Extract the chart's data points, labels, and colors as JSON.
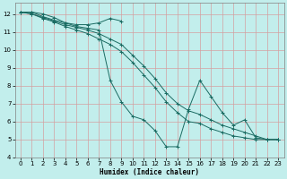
{
  "xlabel": "Humidex (Indice chaleur)",
  "bg_color": "#c2eeec",
  "grid_color": "#d4a0a0",
  "line_color": "#1a6b62",
  "xlim": [
    -0.5,
    23.5
  ],
  "ylim": [
    4,
    12.6
  ],
  "xticks": [
    0,
    1,
    2,
    3,
    4,
    5,
    6,
    7,
    8,
    9,
    10,
    11,
    12,
    13,
    14,
    15,
    16,
    17,
    18,
    19,
    20,
    21,
    22,
    23
  ],
  "yticks": [
    4,
    5,
    6,
    7,
    8,
    9,
    10,
    11,
    12
  ],
  "lines": [
    {
      "x": [
        0,
        1,
        2,
        3,
        4,
        5,
        6,
        7,
        8,
        9
      ],
      "y": [
        12.1,
        12.1,
        11.85,
        11.65,
        11.5,
        11.4,
        11.4,
        11.5,
        11.75,
        11.6
      ]
    },
    {
      "x": [
        0,
        1,
        2,
        3,
        4,
        5,
        6,
        7,
        8,
        9,
        10,
        11,
        12,
        13,
        14,
        15,
        16,
        17,
        18,
        19,
        20,
        21,
        22,
        23
      ],
      "y": [
        12.1,
        12.1,
        12.0,
        11.8,
        11.5,
        11.3,
        11.2,
        11.1,
        8.3,
        7.1,
        6.3,
        6.1,
        5.5,
        4.6,
        4.6,
        6.7,
        8.3,
        7.4,
        6.5,
        5.8,
        6.1,
        5.1,
        5.0,
        5.0
      ]
    },
    {
      "x": [
        0,
        1,
        2,
        3,
        4,
        5,
        6,
        7,
        8,
        9,
        10,
        11,
        12,
        13,
        14,
        15,
        16,
        17,
        18,
        19,
        20,
        21,
        22,
        23
      ],
      "y": [
        12.1,
        12.0,
        11.8,
        11.6,
        11.4,
        11.25,
        11.1,
        10.9,
        10.6,
        10.3,
        9.7,
        9.1,
        8.4,
        7.6,
        7.0,
        6.6,
        6.4,
        6.1,
        5.8,
        5.6,
        5.4,
        5.2,
        5.0,
        5.0
      ]
    },
    {
      "x": [
        0,
        1,
        2,
        3,
        4,
        5,
        6,
        7,
        8,
        9,
        10,
        11,
        12,
        13,
        14,
        15,
        16,
        17,
        18,
        19,
        20,
        21,
        22,
        23
      ],
      "y": [
        12.1,
        12.0,
        11.75,
        11.55,
        11.3,
        11.1,
        10.9,
        10.6,
        10.3,
        9.9,
        9.3,
        8.6,
        7.9,
        7.1,
        6.5,
        6.0,
        5.9,
        5.6,
        5.4,
        5.2,
        5.1,
        5.0,
        5.0,
        5.0
      ]
    }
  ]
}
